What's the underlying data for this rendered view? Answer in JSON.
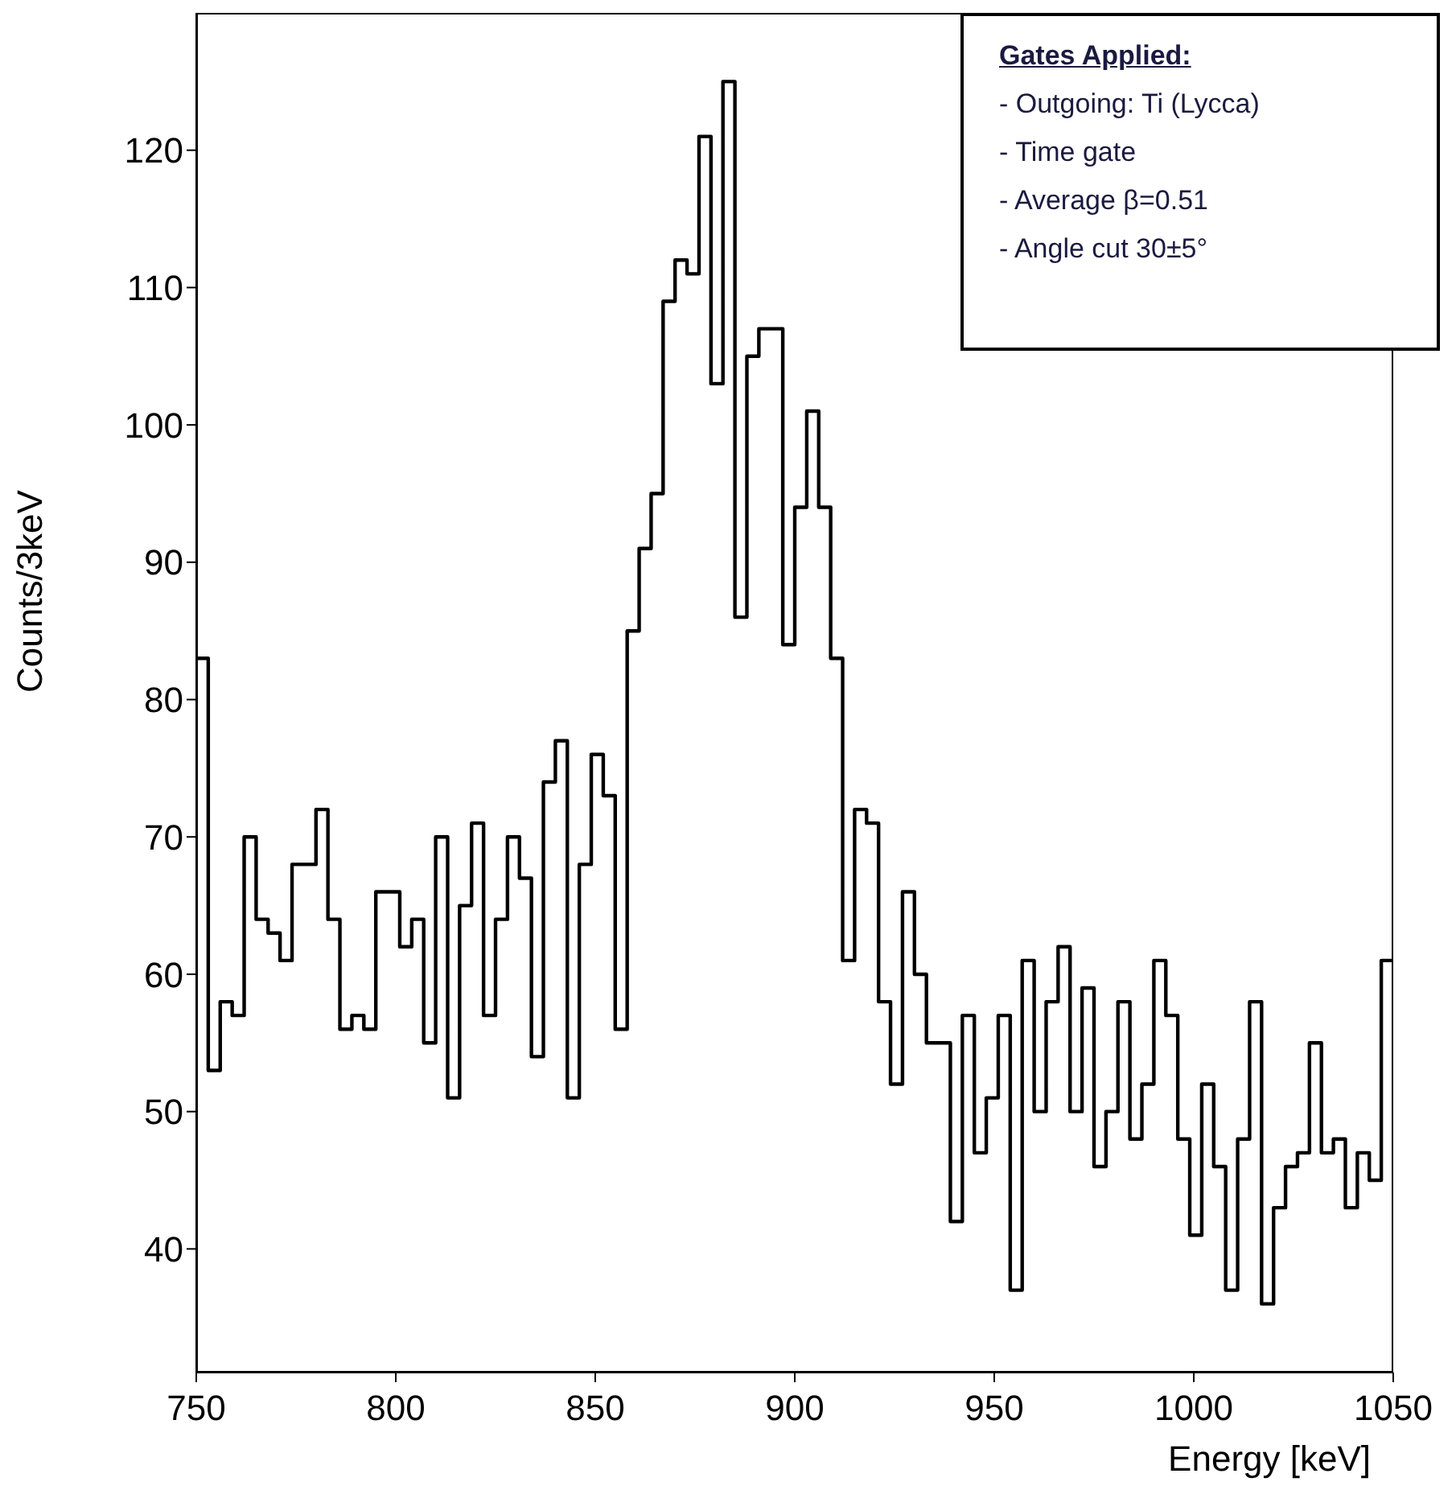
{
  "chart_data": {
    "type": "histogram",
    "xlabel": "Energy [keV]",
    "ylabel": "Counts/3keV",
    "bins": [
      750,
      753,
      756,
      759,
      762,
      765,
      768,
      771,
      774,
      777,
      780,
      783,
      786,
      789,
      792,
      795,
      798,
      801,
      804,
      807,
      810,
      813,
      816,
      819,
      822,
      825,
      828,
      831,
      834,
      837,
      840,
      843,
      846,
      849,
      852,
      855,
      858,
      861,
      864,
      867,
      870,
      873,
      876,
      879,
      882,
      885,
      888,
      891,
      894,
      897,
      900,
      903,
      906,
      909,
      912,
      915,
      918,
      921,
      924,
      927,
      930,
      933,
      936,
      939,
      942,
      945,
      948,
      951,
      954,
      957,
      960,
      963,
      966,
      969,
      972,
      975,
      978,
      981,
      984,
      987,
      990,
      993,
      996,
      999,
      1002,
      1005,
      1008,
      1011,
      1014,
      1017,
      1020,
      1023,
      1026,
      1029,
      1032,
      1035,
      1038,
      1041,
      1044,
      1047,
      1050
    ],
    "values": [
      83,
      53,
      58,
      57,
      70,
      64,
      63,
      61,
      68,
      68,
      72,
      64,
      56,
      57,
      56,
      66,
      66,
      62,
      64,
      55,
      70,
      51,
      65,
      71,
      57,
      64,
      70,
      67,
      54,
      74,
      77,
      51,
      68,
      76,
      73,
      56,
      85,
      91,
      95,
      109,
      112,
      111,
      121,
      103,
      125,
      86,
      105,
      107,
      107,
      84,
      94,
      101,
      94,
      83,
      61,
      72,
      71,
      58,
      52,
      66,
      60,
      55,
      55,
      42,
      57,
      47,
      51,
      57,
      37,
      61,
      50,
      58,
      62,
      50,
      59,
      46,
      50,
      58,
      48,
      52,
      61,
      57,
      48,
      41,
      52,
      46,
      37,
      48,
      58,
      36,
      43,
      46,
      47,
      55,
      47,
      48,
      43,
      47,
      45,
      61
    ],
    "color": "#000000",
    "xlim": [
      750,
      1050
    ],
    "xticks": [
      750,
      800,
      850,
      900,
      950,
      1000,
      1050
    ],
    "ylim": [
      31,
      130
    ],
    "yticks": [
      40,
      50,
      60,
      70,
      80,
      90,
      100,
      110,
      120
    ],
    "annotations": [
      "Gates Applied:",
      "- Outgoing: Ti (Lycca)",
      "- Time gate",
      "- Average β=0.51",
      "- Angle cut 30±5°"
    ]
  }
}
